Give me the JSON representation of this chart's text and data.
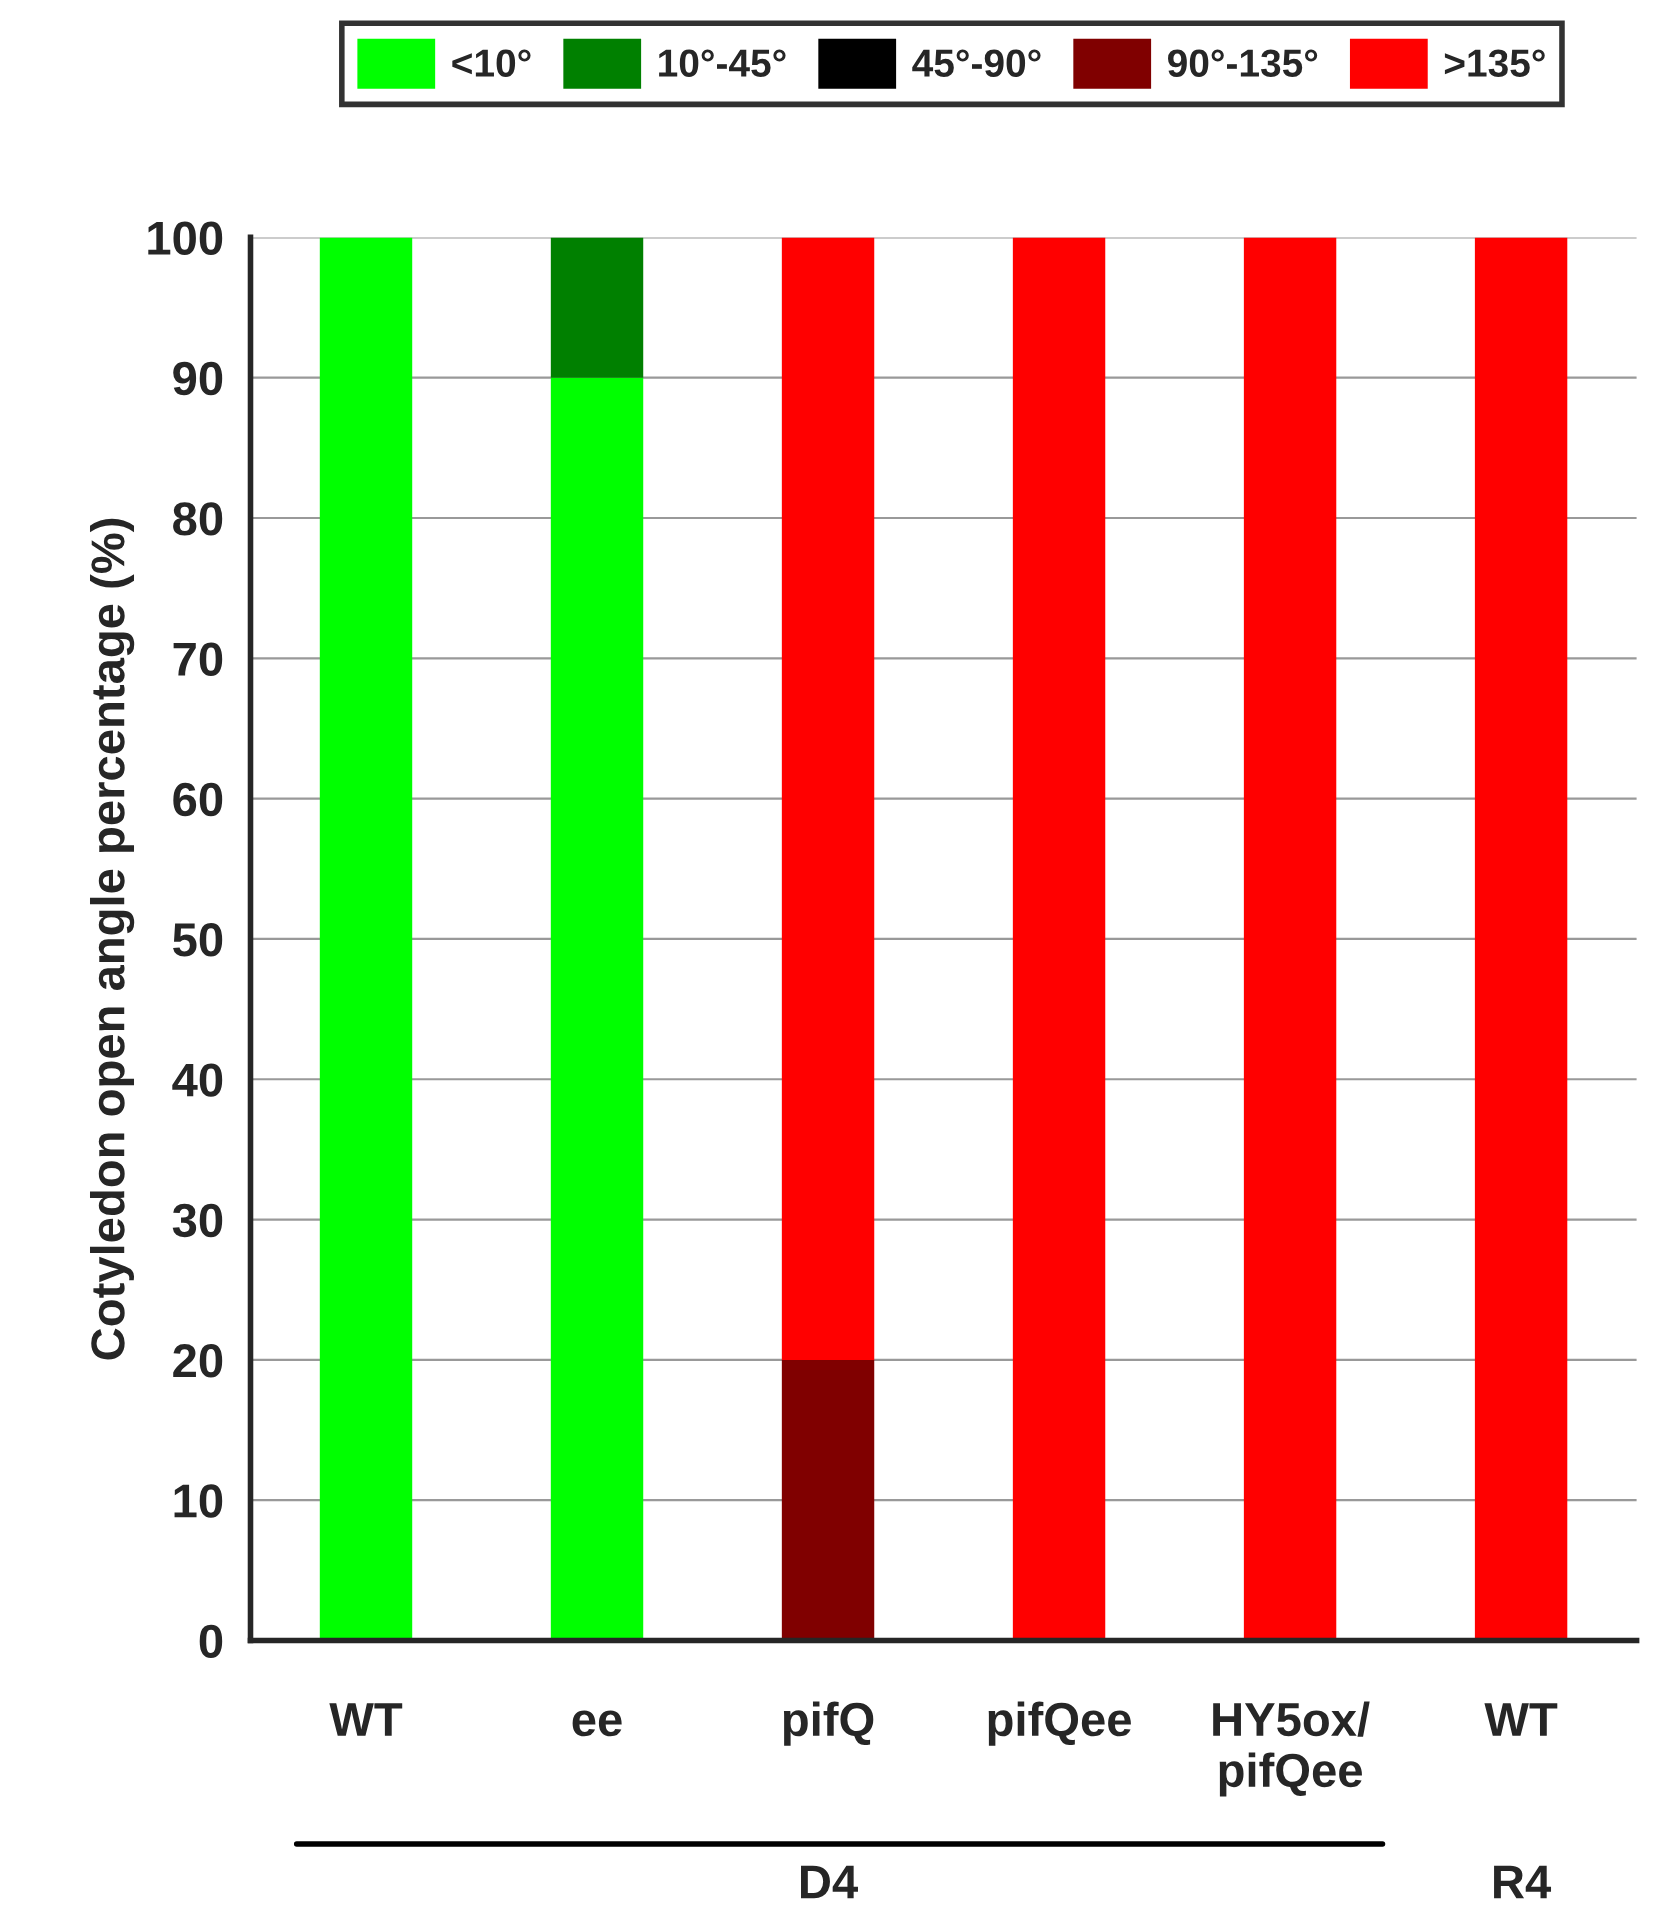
{
  "chart_data": {
    "type": "bar",
    "stacked": true,
    "ylabel": "Cotyledon open angle percentage (%)",
    "categories": [
      "WT",
      "ee",
      "pifQ",
      "pifQee",
      "HY5ox/\npifQee",
      "WT"
    ],
    "series": [
      {
        "name": "<10°",
        "color": "#00ff00",
        "values": [
          100,
          90,
          0,
          0,
          0,
          0
        ]
      },
      {
        "name": "10°-45°",
        "color": "#008000",
        "values": [
          0,
          10,
          0,
          0,
          0,
          0
        ]
      },
      {
        "name": "45°-90°",
        "color": "#000000",
        "values": [
          0,
          0,
          0,
          0,
          0,
          0
        ]
      },
      {
        "name": "90°-135°",
        "color": "#800000",
        "values": [
          0,
          0,
          20,
          0,
          0,
          0
        ]
      },
      {
        "name": ">135°",
        "color": "#ff0000",
        "values": [
          0,
          0,
          80,
          100,
          100,
          100
        ]
      }
    ],
    "ylim": [
      0,
      100
    ],
    "yticks": [
      0,
      10,
      20,
      30,
      40,
      50,
      60,
      70,
      80,
      90,
      100
    ],
    "grid": "y",
    "legend": "top",
    "annotations": [
      "D4",
      "R4"
    ]
  }
}
